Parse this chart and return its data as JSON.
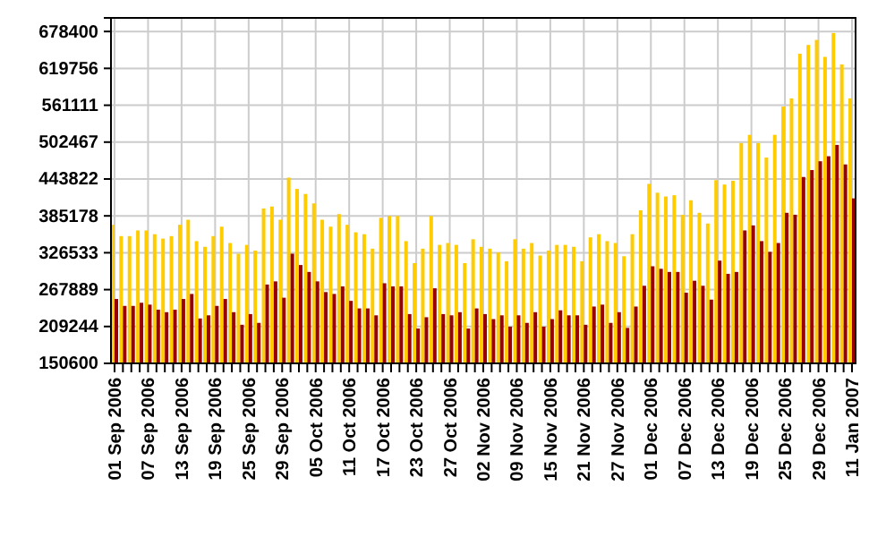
{
  "chart_data": {
    "type": "bar",
    "categories": [
      "01 Sep 2006",
      null,
      null,
      null,
      "07 Sep 2006",
      null,
      null,
      null,
      "13 Sep 2006",
      null,
      null,
      null,
      "19 Sep 2006",
      null,
      null,
      null,
      "25 Sep 2006",
      null,
      null,
      null,
      "29 Sep 2006",
      null,
      null,
      null,
      "05 Oct 2006",
      null,
      null,
      null,
      "11 Oct 2006",
      null,
      null,
      null,
      "17 Oct 2006",
      null,
      null,
      null,
      "23 Oct 2006",
      null,
      null,
      null,
      "27 Oct 2006",
      null,
      null,
      null,
      "02 Nov 2006",
      null,
      null,
      null,
      "09 Nov 2006",
      null,
      null,
      null,
      "15 Nov 2006",
      null,
      null,
      null,
      "21 Nov 2006",
      null,
      null,
      null,
      "27 Nov 2006",
      null,
      null,
      null,
      "01 Dec 2006",
      null,
      null,
      null,
      "07 Dec 2006",
      null,
      null,
      null,
      "13 Dec 2006",
      null,
      null,
      null,
      "19 Dec 2006",
      null,
      null,
      null,
      "25 Dec 2006",
      null,
      null,
      null,
      "29 Dec 2006",
      null,
      null,
      null,
      "11 Jan 2007"
    ],
    "series": [
      {
        "color": "#ffcc00",
        "values": [
          371000,
          353000,
          353000,
          362000,
          362000,
          356000,
          349000,
          353000,
          371000,
          379000,
          345000,
          336000,
          353000,
          368000,
          342000,
          325000,
          339000,
          330000,
          397000,
          400000,
          379000,
          446000,
          428000,
          420000,
          405000,
          379000,
          368000,
          388000,
          371000,
          359000,
          356000,
          333000,
          382000,
          385000,
          385000,
          345000,
          310000,
          333000,
          385000,
          339000,
          342000,
          339000,
          310000,
          348000,
          336000,
          333000,
          327000,
          313000,
          348000,
          333000,
          342000,
          322000,
          330000,
          339000,
          339000,
          336000,
          313000,
          351000,
          356000,
          345000,
          342000,
          321000,
          356000,
          394000,
          436000,
          422000,
          416000,
          418000,
          387000,
          410000,
          390000,
          373000,
          442000,
          435000,
          441000,
          501000,
          514000,
          501000,
          478000,
          514000,
          559000,
          572000,
          643000,
          657000,
          665000,
          638000,
          676000,
          626000,
          572000
        ]
      },
      {
        "color": "#990000",
        "values": [
          253000,
          242000,
          242000,
          247000,
          244000,
          236000,
          232000,
          236000,
          253000,
          261000,
          222000,
          227000,
          242000,
          253000,
          232000,
          212000,
          229000,
          215000,
          276000,
          281000,
          255000,
          325000,
          307000,
          296000,
          281000,
          264000,
          261000,
          273000,
          250000,
          238000,
          238000,
          227000,
          278000,
          273000,
          273000,
          229000,
          206000,
          224000,
          270000,
          229000,
          227000,
          232000,
          206000,
          238000,
          229000,
          221000,
          227000,
          209000,
          227000,
          215000,
          232000,
          209000,
          221000,
          235000,
          227000,
          227000,
          212000,
          241000,
          244000,
          215000,
          232000,
          207000,
          241000,
          274000,
          305000,
          301000,
          296000,
          296000,
          263000,
          282000,
          274000,
          252000,
          314000,
          293000,
          296000,
          362000,
          370000,
          345000,
          328000,
          342000,
          390000,
          387000,
          447000,
          458000,
          472000,
          480000,
          498000,
          467000,
          413000
        ]
      }
    ],
    "ylim": [
      150600,
      700000
    ],
    "yticks": [
      150600,
      209244,
      267889,
      326533,
      385178,
      443822,
      502467,
      561111,
      619756,
      678400
    ],
    "grid": true
  }
}
